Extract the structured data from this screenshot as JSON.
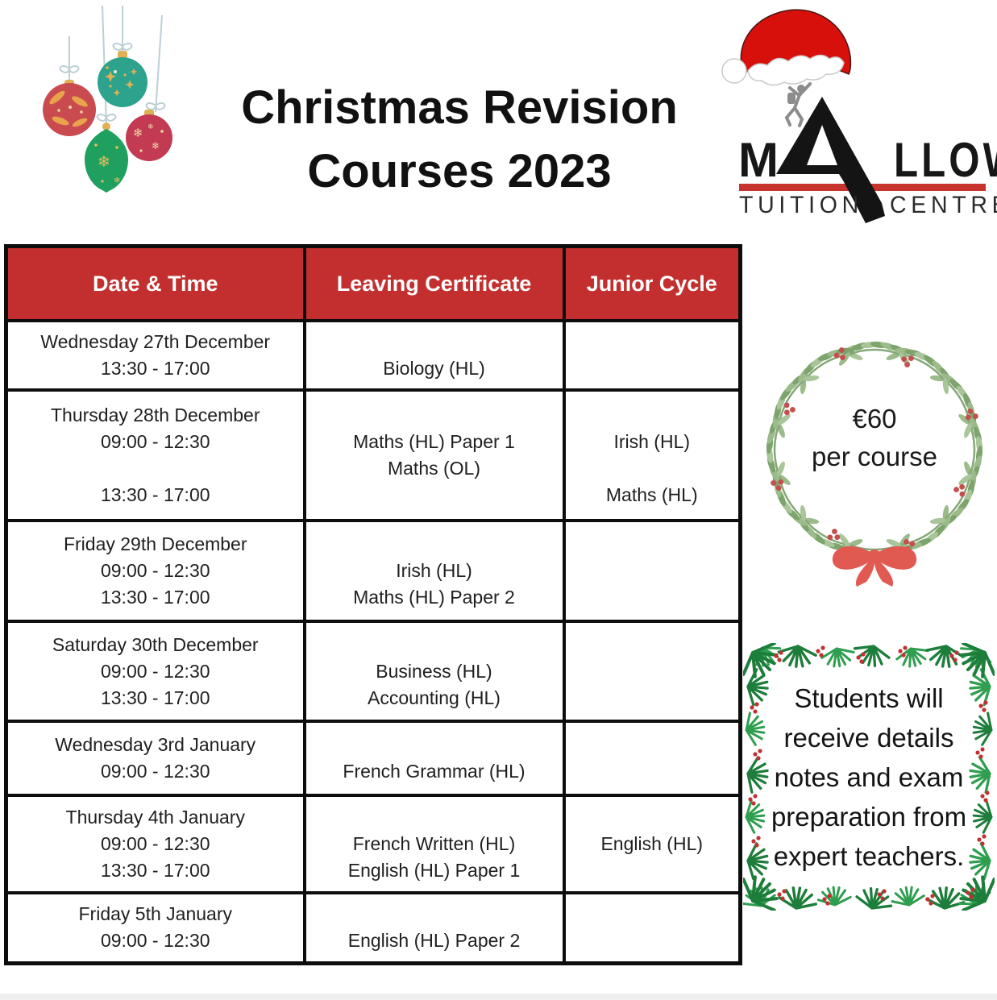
{
  "page_title_lines": [
    "Christmas Revision",
    "Courses 2023"
  ],
  "logo": {
    "name_start": "M",
    "name_accent": "A",
    "name_end": "LLOW",
    "tagline_left": "TUITION",
    "tagline_right": "CENTRE"
  },
  "price_badge": {
    "amount": "€60",
    "unit": "per course"
  },
  "note_lines": [
    "Students will",
    "receive details",
    "notes and exam",
    "preparation from",
    "expert teachers."
  ],
  "table": {
    "headers": [
      "Date & Time",
      "Leaving Certificate",
      "Junior Cycle"
    ],
    "rows": [
      {
        "date": [
          "Wednesday 27th December",
          "13:30 - 17:00"
        ],
        "leaving_cert": [
          "",
          "Biology (HL)"
        ],
        "junior_cycle": []
      },
      {
        "date": [
          "Thursday 28th December",
          "09:00 - 12:30",
          "",
          "13:30 - 17:00"
        ],
        "leaving_cert": [
          "",
          "Maths (HL) Paper 1",
          "Maths (OL)",
          ""
        ],
        "junior_cycle": [
          "",
          "Irish (HL)",
          "",
          "Maths (HL)"
        ]
      },
      {
        "date": [
          "Friday 29th December",
          "09:00 - 12:30",
          "13:30 - 17:00"
        ],
        "leaving_cert": [
          "",
          "Irish (HL)",
          "Maths (HL) Paper 2"
        ],
        "junior_cycle": []
      },
      {
        "date": [
          "Saturday 30th December",
          "09:00 - 12:30",
          "13:30 - 17:00"
        ],
        "leaving_cert": [
          "",
          "Business (HL)",
          "Accounting (HL)"
        ],
        "junior_cycle": []
      },
      {
        "date": [
          "Wednesday 3rd January",
          "09:00 - 12:30"
        ],
        "leaving_cert": [
          "",
          "French Grammar (HL)"
        ],
        "junior_cycle": []
      },
      {
        "date": [
          "Thursday 4th January",
          "09:00 - 12:30",
          "13:30 - 17:00"
        ],
        "leaving_cert": [
          "",
          "French Written (HL)",
          "English (HL) Paper 1"
        ],
        "junior_cycle": [
          "",
          "English (HL)",
          ""
        ]
      },
      {
        "date": [
          "Friday 5th January",
          "09:00 - 12:30"
        ],
        "leaving_cert": [
          "",
          "English (HL) Paper 2"
        ],
        "junior_cycle": []
      }
    ]
  },
  "icons": {
    "decorations": [
      "christmas-ornaments-icon",
      "santa-hat-icon",
      "climber-icon",
      "wreath-icon",
      "pine-frame-icon"
    ]
  },
  "colors": {
    "table_header_red": "#c22f2e",
    "logo_bar_red": "#c6342d",
    "santa_hat_red": "#d8100c",
    "berry_red": "#c4504e",
    "bow_red": "#e05a52",
    "pine_green": "#2f9e4f",
    "ornament_teal": "#2da28c",
    "ornament_red": "#c94b50",
    "ornament_crimson": "#c23b52",
    "ornament_green": "#1fa05e",
    "gold": "#e0b054"
  }
}
